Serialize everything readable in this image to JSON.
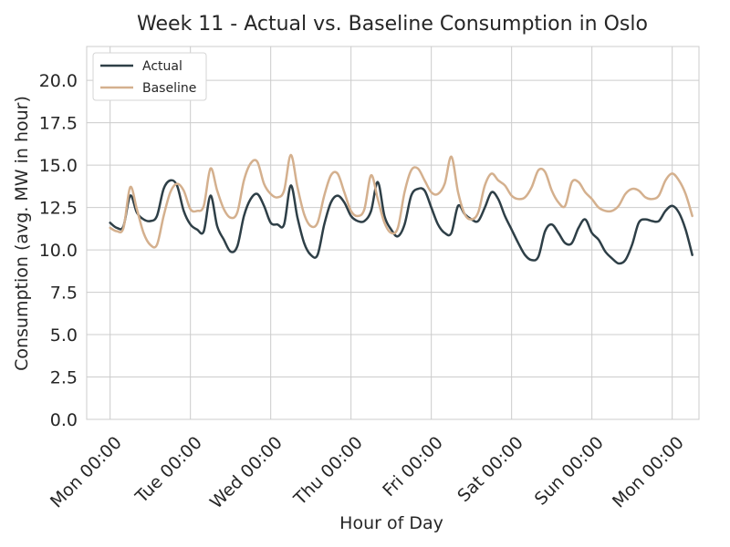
{
  "chart_data": {
    "type": "line",
    "title": "Week 11 - Actual vs. Baseline Consumption in Oslo",
    "xlabel": "Hour of Day",
    "ylabel": "Consumption (avg. MW in hour)",
    "ylim": [
      0,
      22
    ],
    "xlim_hours": [
      -7,
      176
    ],
    "yticks": [
      0.0,
      2.5,
      5.0,
      7.5,
      10.0,
      12.5,
      15.0,
      17.5,
      20.0
    ],
    "ytick_labels": [
      "0.0",
      "2.5",
      "5.0",
      "7.5",
      "10.0",
      "12.5",
      "15.0",
      "17.5",
      "20.0"
    ],
    "xtick_labels": [
      "Mon 00:00",
      "Tue 00:00",
      "Wed 00:00",
      "Thu 00:00",
      "Fri 00:00",
      "Sat 00:00",
      "Sun 00:00",
      "Mon 00:00"
    ],
    "grid": true,
    "legend_position": "top-left",
    "series": [
      {
        "name": "Actual",
        "color": "#2e3f47",
        "points": [
          [
            0,
            11.6
          ],
          [
            2,
            11.3
          ],
          [
            4,
            11.4
          ],
          [
            6,
            13.2
          ],
          [
            8,
            12.2
          ],
          [
            10,
            11.8
          ],
          [
            12,
            11.7
          ],
          [
            14,
            12.0
          ],
          [
            16,
            13.6
          ],
          [
            18,
            14.1
          ],
          [
            20,
            13.8
          ],
          [
            22,
            12.3
          ],
          [
            24,
            11.5
          ],
          [
            26,
            11.2
          ],
          [
            28,
            11.1
          ],
          [
            30,
            13.2
          ],
          [
            32,
            11.4
          ],
          [
            34,
            10.6
          ],
          [
            36,
            9.9
          ],
          [
            38,
            10.2
          ],
          [
            40,
            12.0
          ],
          [
            42,
            13.0
          ],
          [
            44,
            13.3
          ],
          [
            46,
            12.6
          ],
          [
            48,
            11.6
          ],
          [
            50,
            11.5
          ],
          [
            52,
            11.5
          ],
          [
            54,
            13.8
          ],
          [
            56,
            11.9
          ],
          [
            58,
            10.4
          ],
          [
            60,
            9.7
          ],
          [
            62,
            9.7
          ],
          [
            64,
            11.5
          ],
          [
            66,
            12.8
          ],
          [
            68,
            13.2
          ],
          [
            70,
            12.8
          ],
          [
            72,
            12.0
          ],
          [
            74,
            11.7
          ],
          [
            76,
            11.7
          ],
          [
            78,
            12.3
          ],
          [
            80,
            14.0
          ],
          [
            82,
            12.0
          ],
          [
            84,
            11.2
          ],
          [
            86,
            10.8
          ],
          [
            88,
            11.5
          ],
          [
            90,
            13.2
          ],
          [
            92,
            13.6
          ],
          [
            94,
            13.5
          ],
          [
            96,
            12.5
          ],
          [
            98,
            11.5
          ],
          [
            100,
            11.0
          ],
          [
            102,
            11.0
          ],
          [
            104,
            12.6
          ],
          [
            106,
            12.1
          ],
          [
            108,
            11.8
          ],
          [
            110,
            11.7
          ],
          [
            112,
            12.5
          ],
          [
            114,
            13.4
          ],
          [
            116,
            13.0
          ],
          [
            118,
            12.0
          ],
          [
            120,
            11.2
          ],
          [
            122,
            10.4
          ],
          [
            124,
            9.7
          ],
          [
            126,
            9.4
          ],
          [
            128,
            9.6
          ],
          [
            130,
            11.1
          ],
          [
            132,
            11.5
          ],
          [
            134,
            11.0
          ],
          [
            136,
            10.4
          ],
          [
            138,
            10.4
          ],
          [
            140,
            11.3
          ],
          [
            142,
            11.8
          ],
          [
            144,
            11.0
          ],
          [
            146,
            10.6
          ],
          [
            148,
            9.9
          ],
          [
            150,
            9.5
          ],
          [
            152,
            9.2
          ],
          [
            154,
            9.4
          ],
          [
            156,
            10.3
          ],
          [
            158,
            11.6
          ],
          [
            160,
            11.8
          ],
          [
            162,
            11.7
          ],
          [
            164,
            11.7
          ],
          [
            166,
            12.3
          ],
          [
            168,
            12.6
          ],
          [
            170,
            12.2
          ],
          [
            172,
            11.2
          ],
          [
            174,
            9.7
          ]
        ]
      },
      {
        "name": "Baseline",
        "color": "#d4b08e",
        "points": [
          [
            0,
            11.3
          ],
          [
            2,
            11.1
          ],
          [
            4,
            11.3
          ],
          [
            6,
            13.7
          ],
          [
            8,
            12.4
          ],
          [
            10,
            11.0
          ],
          [
            12,
            10.3
          ],
          [
            14,
            10.3
          ],
          [
            16,
            12.0
          ],
          [
            18,
            13.4
          ],
          [
            20,
            13.9
          ],
          [
            22,
            13.5
          ],
          [
            24,
            12.4
          ],
          [
            26,
            12.3
          ],
          [
            28,
            12.6
          ],
          [
            30,
            14.8
          ],
          [
            32,
            13.5
          ],
          [
            34,
            12.4
          ],
          [
            36,
            11.9
          ],
          [
            38,
            12.2
          ],
          [
            40,
            14.1
          ],
          [
            42,
            15.1
          ],
          [
            44,
            15.2
          ],
          [
            46,
            13.9
          ],
          [
            48,
            13.3
          ],
          [
            50,
            13.1
          ],
          [
            52,
            13.5
          ],
          [
            54,
            15.6
          ],
          [
            56,
            13.7
          ],
          [
            58,
            12.1
          ],
          [
            60,
            11.4
          ],
          [
            62,
            11.6
          ],
          [
            64,
            13.2
          ],
          [
            66,
            14.4
          ],
          [
            68,
            14.5
          ],
          [
            70,
            13.4
          ],
          [
            72,
            12.3
          ],
          [
            74,
            12.0
          ],
          [
            76,
            12.4
          ],
          [
            78,
            14.4
          ],
          [
            80,
            13.0
          ],
          [
            82,
            11.6
          ],
          [
            84,
            11.0
          ],
          [
            86,
            11.3
          ],
          [
            88,
            13.4
          ],
          [
            90,
            14.7
          ],
          [
            92,
            14.8
          ],
          [
            94,
            14.1
          ],
          [
            96,
            13.4
          ],
          [
            98,
            13.3
          ],
          [
            100,
            13.9
          ],
          [
            102,
            15.5
          ],
          [
            104,
            13.4
          ],
          [
            106,
            12.1
          ],
          [
            108,
            11.8
          ],
          [
            110,
            12.2
          ],
          [
            112,
            13.8
          ],
          [
            114,
            14.5
          ],
          [
            116,
            14.1
          ],
          [
            118,
            13.8
          ],
          [
            120,
            13.2
          ],
          [
            122,
            13.0
          ],
          [
            124,
            13.1
          ],
          [
            126,
            13.7
          ],
          [
            128,
            14.7
          ],
          [
            130,
            14.6
          ],
          [
            132,
            13.5
          ],
          [
            134,
            12.8
          ],
          [
            136,
            12.6
          ],
          [
            138,
            14.0
          ],
          [
            140,
            14.0
          ],
          [
            142,
            13.4
          ],
          [
            144,
            13.0
          ],
          [
            146,
            12.5
          ],
          [
            148,
            12.3
          ],
          [
            150,
            12.3
          ],
          [
            152,
            12.6
          ],
          [
            154,
            13.3
          ],
          [
            156,
            13.6
          ],
          [
            158,
            13.5
          ],
          [
            160,
            13.1
          ],
          [
            162,
            13.0
          ],
          [
            164,
            13.2
          ],
          [
            166,
            14.1
          ],
          [
            168,
            14.5
          ],
          [
            170,
            14.1
          ],
          [
            172,
            13.3
          ],
          [
            174,
            12.0
          ]
        ]
      }
    ]
  }
}
